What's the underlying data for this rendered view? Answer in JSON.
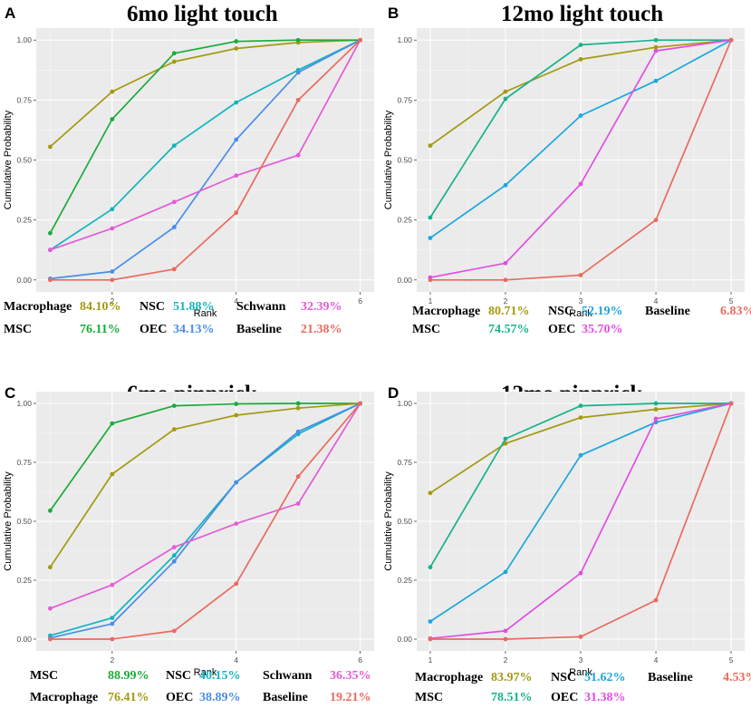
{
  "panels": [
    {
      "letter": "A",
      "title": "6mo light touch",
      "chart_data": {
        "type": "line",
        "xlabel": "Rank",
        "ylabel": "Cumulative Probability",
        "x": [
          1,
          2,
          3,
          4,
          5,
          6
        ],
        "xticks": [
          2,
          4,
          6
        ],
        "xlim": [
          1,
          6
        ],
        "ylim": [
          0,
          1
        ],
        "yticks": [
          "0.00",
          "0.25",
          "0.50",
          "0.75",
          "1.00"
        ],
        "grid": true,
        "series": [
          {
            "name": "Macrophage",
            "color": "#a39a10",
            "values": [
              0.555,
              0.785,
              0.91,
              0.965,
              0.99,
              1.0
            ]
          },
          {
            "name": "MSC",
            "color": "#1aab3c",
            "values": [
              0.195,
              0.67,
              0.945,
              0.995,
              1.0,
              1.0
            ]
          },
          {
            "name": "NSC",
            "color": "#12b5bf",
            "values": [
              0.125,
              0.295,
              0.56,
              0.74,
              0.875,
              1.0
            ]
          },
          {
            "name": "OEC",
            "color": "#4a8ee6",
            "values": [
              0.005,
              0.035,
              0.22,
              0.585,
              0.865,
              1.0
            ]
          },
          {
            "name": "Schwann",
            "color": "#e35bd8",
            "values": [
              0.125,
              0.215,
              0.325,
              0.435,
              0.52,
              1.0
            ]
          },
          {
            "name": "Baseline",
            "color": "#ea6a5e",
            "values": [
              0.0,
              0.0,
              0.045,
              0.28,
              0.75,
              1.0
            ]
          }
        ]
      },
      "legend": [
        {
          "name": "Macrophage",
          "value": "84.10%",
          "color": "#a39a10"
        },
        {
          "name": "NSC",
          "value": "51.88%",
          "color": "#12b5bf"
        },
        {
          "name": "Schwann",
          "value": "32.39%",
          "color": "#e35bd8"
        },
        {
          "name": "MSC",
          "value": "76.11%",
          "color": "#1aab3c"
        },
        {
          "name": "OEC",
          "value": "34.13%",
          "color": "#4a8ee6"
        },
        {
          "name": "Baseline",
          "value": "21.38%",
          "color": "#ea6a5e"
        }
      ]
    },
    {
      "letter": "B",
      "title": "12mo light touch",
      "chart_data": {
        "type": "line",
        "xlabel": "Rank",
        "ylabel": "Cumulative Probability",
        "x": [
          1,
          2,
          3,
          4,
          5
        ],
        "xticks": [
          1,
          2,
          3,
          4,
          5
        ],
        "xlim": [
          1,
          5
        ],
        "ylim": [
          0,
          1
        ],
        "yticks": [
          "0.00",
          "0.25",
          "0.50",
          "0.75",
          "1.00"
        ],
        "grid": true,
        "series": [
          {
            "name": "Macrophage",
            "color": "#a39a10",
            "values": [
              0.56,
              0.785,
              0.92,
              0.97,
              1.0
            ]
          },
          {
            "name": "MSC",
            "color": "#17b28c",
            "values": [
              0.26,
              0.755,
              0.98,
              1.0,
              1.0
            ]
          },
          {
            "name": "NSC",
            "color": "#1ba7e0",
            "values": [
              0.175,
              0.395,
              0.685,
              0.83,
              1.0
            ]
          },
          {
            "name": "OEC",
            "color": "#e14ee4",
            "values": [
              0.01,
              0.07,
              0.4,
              0.955,
              1.0
            ]
          },
          {
            "name": "Baseline",
            "color": "#ea6a5e",
            "values": [
              0.0,
              0.0,
              0.02,
              0.25,
              1.0
            ]
          }
        ]
      },
      "legend": [
        {
          "name": "Macrophage",
          "value": "80.71%",
          "color": "#a39a10"
        },
        {
          "name": "NSC",
          "value": "52.19%",
          "color": "#1ba7e0"
        },
        {
          "name": "Baseline",
          "value": "6.83%",
          "color": "#ea6a5e"
        },
        {
          "name": "MSC",
          "value": "74.57%",
          "color": "#17b28c"
        },
        {
          "name": "OEC",
          "value": "35.70%",
          "color": "#e14ee4"
        }
      ]
    },
    {
      "letter": "C",
      "title": "6mo pinprick",
      "chart_data": {
        "type": "line",
        "xlabel": "Rank",
        "ylabel": "Cumulative Probability",
        "x": [
          1,
          2,
          3,
          4,
          5,
          6
        ],
        "xticks": [
          2,
          4,
          6
        ],
        "xlim": [
          1,
          6
        ],
        "ylim": [
          0,
          1
        ],
        "yticks": [
          "0.00",
          "0.25",
          "0.50",
          "0.75",
          "1.00"
        ],
        "grid": true,
        "series": [
          {
            "name": "MSC",
            "color": "#1aab3c",
            "values": [
              0.545,
              0.915,
              0.99,
              0.998,
              1.0,
              1.0
            ]
          },
          {
            "name": "Macrophage",
            "color": "#a39a10",
            "values": [
              0.305,
              0.7,
              0.89,
              0.95,
              0.98,
              1.0
            ]
          },
          {
            "name": "NSC",
            "color": "#12b5bf",
            "values": [
              0.015,
              0.09,
              0.355,
              0.665,
              0.87,
              1.0
            ]
          },
          {
            "name": "OEC",
            "color": "#4a8ee6",
            "values": [
              0.005,
              0.065,
              0.33,
              0.665,
              0.88,
              1.0
            ]
          },
          {
            "name": "Schwann",
            "color": "#e35bd8",
            "values": [
              0.13,
              0.23,
              0.39,
              0.49,
              0.575,
              1.0
            ]
          },
          {
            "name": "Baseline",
            "color": "#ea6a5e",
            "values": [
              0.0,
              0.0,
              0.035,
              0.235,
              0.69,
              1.0
            ]
          }
        ]
      },
      "legend": [
        {
          "name": "MSC",
          "value": "88.99%",
          "color": "#1aab3c"
        },
        {
          "name": "NSC",
          "value": "40.15%",
          "color": "#12b5bf"
        },
        {
          "name": "Schwann",
          "value": "36.35%",
          "color": "#e35bd8"
        },
        {
          "name": "Macrophage",
          "value": "76.41%",
          "color": "#a39a10"
        },
        {
          "name": "OEC",
          "value": "38.89%",
          "color": "#4a8ee6"
        },
        {
          "name": "Baseline",
          "value": "19.21%",
          "color": "#ea6a5e"
        }
      ]
    },
    {
      "letter": "D",
      "title": "12mo pinprick",
      "chart_data": {
        "type": "line",
        "xlabel": "Rank",
        "ylabel": "Cumulative Probability",
        "x": [
          1,
          2,
          3,
          4,
          5
        ],
        "xticks": [
          1,
          2,
          3,
          4,
          5
        ],
        "xlim": [
          1,
          5
        ],
        "ylim": [
          0,
          1
        ],
        "yticks": [
          "0.00",
          "0.25",
          "0.50",
          "0.75",
          "1.00"
        ],
        "grid": true,
        "series": [
          {
            "name": "Macrophage",
            "color": "#a39a10",
            "values": [
              0.62,
              0.83,
              0.94,
              0.975,
              1.0
            ]
          },
          {
            "name": "MSC",
            "color": "#17b28c",
            "values": [
              0.305,
              0.85,
              0.99,
              1.0,
              1.0
            ]
          },
          {
            "name": "NSC",
            "color": "#1ba7e0",
            "values": [
              0.075,
              0.285,
              0.78,
              0.92,
              1.0
            ]
          },
          {
            "name": "OEC",
            "color": "#e14ee4",
            "values": [
              0.003,
              0.035,
              0.28,
              0.935,
              1.0
            ]
          },
          {
            "name": "Baseline",
            "color": "#ea6a5e",
            "values": [
              0.0,
              0.0,
              0.01,
              0.165,
              1.0
            ]
          }
        ]
      },
      "legend": [
        {
          "name": "Macrophage",
          "value": "83.97%",
          "color": "#a39a10"
        },
        {
          "name": "NSC",
          "value": "51.62%",
          "color": "#1ba7e0"
        },
        {
          "name": "Baseline",
          "value": "4.53%",
          "color": "#ea6a5e"
        },
        {
          "name": "MSC",
          "value": "78.51%",
          "color": "#17b28c"
        },
        {
          "name": "OEC",
          "value": "31.38%",
          "color": "#e14ee4"
        }
      ]
    }
  ]
}
